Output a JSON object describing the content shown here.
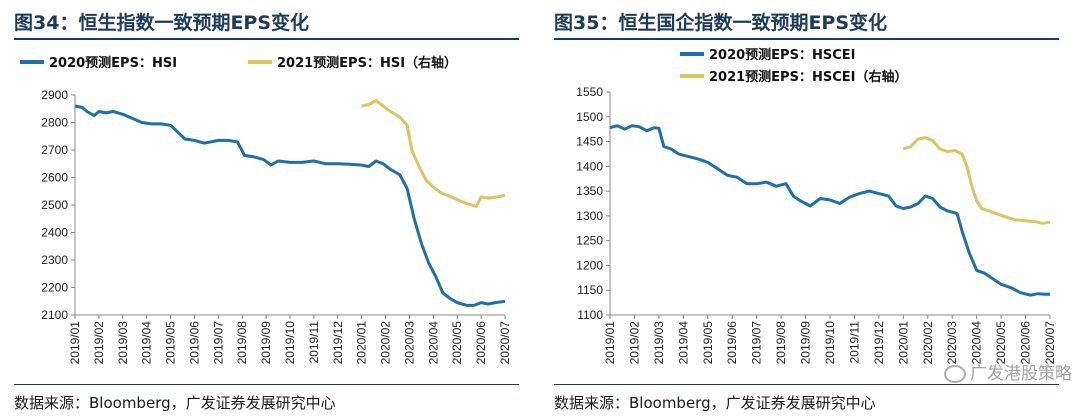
{
  "panels": {
    "left": {
      "title": "图34：恒生指数一致预期EPS变化",
      "source": "数据来源：Bloomberg，广发证券发展研究中心"
    },
    "right": {
      "title": "图35：恒生国企指数一致预期EPS变化",
      "source": "数据来源：Bloomberg，广发证券发展研究中心"
    }
  },
  "watermark": "广发港股策略",
  "colors": {
    "series2020": "#1f6fa8",
    "series2021": "#dcc364"
  },
  "chart_data": [
    {
      "type": "line",
      "title": "图34：恒生指数一致预期EPS变化",
      "x_tick_labels": [
        "2019/01",
        "2019/02",
        "2019/03",
        "2019/04",
        "2019/05",
        "2019/06",
        "2019/07",
        "2019/08",
        "2019/09",
        "2019/10",
        "2019/11",
        "2019/12",
        "2020/01",
        "2020/02",
        "2020/03",
        "2020/04",
        "2020/05",
        "2020/06",
        "2020/07"
      ],
      "xlim": [
        0,
        18
      ],
      "ylim": [
        2100,
        2900
      ],
      "y_ticks": [
        2100,
        2200,
        2300,
        2400,
        2500,
        2600,
        2700,
        2800,
        2900
      ],
      "series": [
        {
          "name": "2020预测EPS：HSI",
          "axis": "left",
          "points": [
            [
              0,
              2860
            ],
            [
              0.3,
              2855
            ],
            [
              0.5,
              2840
            ],
            [
              0.8,
              2825
            ],
            [
              1,
              2840
            ],
            [
              1.3,
              2835
            ],
            [
              1.6,
              2840
            ],
            [
              2,
              2830
            ],
            [
              2.4,
              2815
            ],
            [
              2.8,
              2800
            ],
            [
              3.2,
              2795
            ],
            [
              3.6,
              2795
            ],
            [
              4,
              2790
            ],
            [
              4.3,
              2765
            ],
            [
              4.6,
              2740
            ],
            [
              5,
              2735
            ],
            [
              5.4,
              2725
            ],
            [
              5.7,
              2730
            ],
            [
              6,
              2735
            ],
            [
              6.4,
              2735
            ],
            [
              6.8,
              2730
            ],
            [
              7.1,
              2680
            ],
            [
              7.5,
              2675
            ],
            [
              7.9,
              2665
            ],
            [
              8.2,
              2645
            ],
            [
              8.5,
              2660
            ],
            [
              9,
              2655
            ],
            [
              9.5,
              2655
            ],
            [
              10,
              2660
            ],
            [
              10.5,
              2650
            ],
            [
              11,
              2650
            ],
            [
              11.5,
              2648
            ],
            [
              12,
              2645
            ],
            [
              12.3,
              2640
            ],
            [
              12.6,
              2660
            ],
            [
              12.9,
              2650
            ],
            [
              13.2,
              2630
            ],
            [
              13.6,
              2610
            ],
            [
              13.9,
              2560
            ],
            [
              14.2,
              2450
            ],
            [
              14.5,
              2360
            ],
            [
              14.8,
              2290
            ],
            [
              15.1,
              2240
            ],
            [
              15.4,
              2180
            ],
            [
              15.7,
              2160
            ],
            [
              16,
              2145
            ],
            [
              16.4,
              2135
            ],
            [
              16.7,
              2135
            ],
            [
              17,
              2145
            ],
            [
              17.3,
              2140
            ],
            [
              17.6,
              2145
            ],
            [
              18,
              2150
            ]
          ]
        },
        {
          "name": "2021预测EPS：HSI（右轴）",
          "axis": "right",
          "points": [
            [
              12,
              2860
            ],
            [
              12.3,
              2865
            ],
            [
              12.6,
              2880
            ],
            [
              12.9,
              2860
            ],
            [
              13.2,
              2840
            ],
            [
              13.6,
              2820
            ],
            [
              13.9,
              2790
            ],
            [
              14.1,
              2700
            ],
            [
              14.4,
              2640
            ],
            [
              14.7,
              2590
            ],
            [
              15,
              2565
            ],
            [
              15.3,
              2545
            ],
            [
              15.6,
              2535
            ],
            [
              16,
              2520
            ],
            [
              16.4,
              2505
            ],
            [
              16.8,
              2495
            ],
            [
              17,
              2530
            ],
            [
              17.3,
              2525
            ],
            [
              17.6,
              2528
            ],
            [
              18,
              2535
            ]
          ]
        }
      ],
      "legend_position": "top-left"
    },
    {
      "type": "line",
      "title": "图35：恒生国企指数一致预期EPS变化",
      "x_tick_labels": [
        "2019/01",
        "2019/02",
        "2019/03",
        "2019/04",
        "2019/05",
        "2019/06",
        "2019/07",
        "2019/08",
        "2019/09",
        "2019/10",
        "2019/11",
        "2019/12",
        "2020/01",
        "2020/02",
        "2020/03",
        "2020/04",
        "2020/05",
        "2020/06",
        "2020/07"
      ],
      "xlim": [
        0,
        18
      ],
      "ylim": [
        1100,
        1550
      ],
      "y_ticks": [
        1100,
        1150,
        1200,
        1250,
        1300,
        1350,
        1400,
        1450,
        1500,
        1550
      ],
      "series": [
        {
          "name": "2020预测EPS：HSCEI",
          "axis": "left",
          "points": [
            [
              0,
              1478
            ],
            [
              0.3,
              1482
            ],
            [
              0.6,
              1475
            ],
            [
              0.9,
              1482
            ],
            [
              1.2,
              1480
            ],
            [
              1.5,
              1472
            ],
            [
              1.8,
              1478
            ],
            [
              2,
              1477
            ],
            [
              2.2,
              1440
            ],
            [
              2.5,
              1435
            ],
            [
              2.8,
              1425
            ],
            [
              3.2,
              1420
            ],
            [
              3.6,
              1415
            ],
            [
              4,
              1408
            ],
            [
              4.4,
              1395
            ],
            [
              4.8,
              1382
            ],
            [
              5.2,
              1378
            ],
            [
              5.6,
              1365
            ],
            [
              6,
              1365
            ],
            [
              6.4,
              1368
            ],
            [
              6.8,
              1360
            ],
            [
              7.2,
              1365
            ],
            [
              7.5,
              1340
            ],
            [
              7.8,
              1330
            ],
            [
              8.2,
              1320
            ],
            [
              8.6,
              1335
            ],
            [
              9,
              1332
            ],
            [
              9.4,
              1325
            ],
            [
              9.8,
              1338
            ],
            [
              10.2,
              1345
            ],
            [
              10.6,
              1350
            ],
            [
              11,
              1345
            ],
            [
              11.4,
              1340
            ],
            [
              11.7,
              1320
            ],
            [
              12,
              1315
            ],
            [
              12.3,
              1318
            ],
            [
              12.6,
              1325
            ],
            [
              12.9,
              1340
            ],
            [
              13.2,
              1335
            ],
            [
              13.5,
              1318
            ],
            [
              13.8,
              1310
            ],
            [
              14.2,
              1305
            ],
            [
              14.4,
              1270
            ],
            [
              14.7,
              1225
            ],
            [
              15,
              1190
            ],
            [
              15.3,
              1185
            ],
            [
              15.6,
              1175
            ],
            [
              16,
              1162
            ],
            [
              16.4,
              1155
            ],
            [
              16.8,
              1145
            ],
            [
              17.2,
              1140
            ],
            [
              17.5,
              1143
            ],
            [
              17.8,
              1142
            ],
            [
              18,
              1142
            ]
          ]
        },
        {
          "name": "2021预测EPS：HSCEI（右轴）",
          "axis": "right",
          "points": [
            [
              12,
              1435
            ],
            [
              12.3,
              1440
            ],
            [
              12.6,
              1455
            ],
            [
              12.9,
              1458
            ],
            [
              13.2,
              1452
            ],
            [
              13.5,
              1435
            ],
            [
              13.8,
              1430
            ],
            [
              14.1,
              1432
            ],
            [
              14.4,
              1425
            ],
            [
              14.6,
              1400
            ],
            [
              14.8,
              1360
            ],
            [
              15,
              1330
            ],
            [
              15.2,
              1315
            ],
            [
              15.5,
              1310
            ],
            [
              15.8,
              1305
            ],
            [
              16.2,
              1298
            ],
            [
              16.6,
              1292
            ],
            [
              17,
              1290
            ],
            [
              17.4,
              1288
            ],
            [
              17.7,
              1285
            ],
            [
              18,
              1287
            ]
          ]
        }
      ],
      "legend_position": "top-center"
    }
  ]
}
